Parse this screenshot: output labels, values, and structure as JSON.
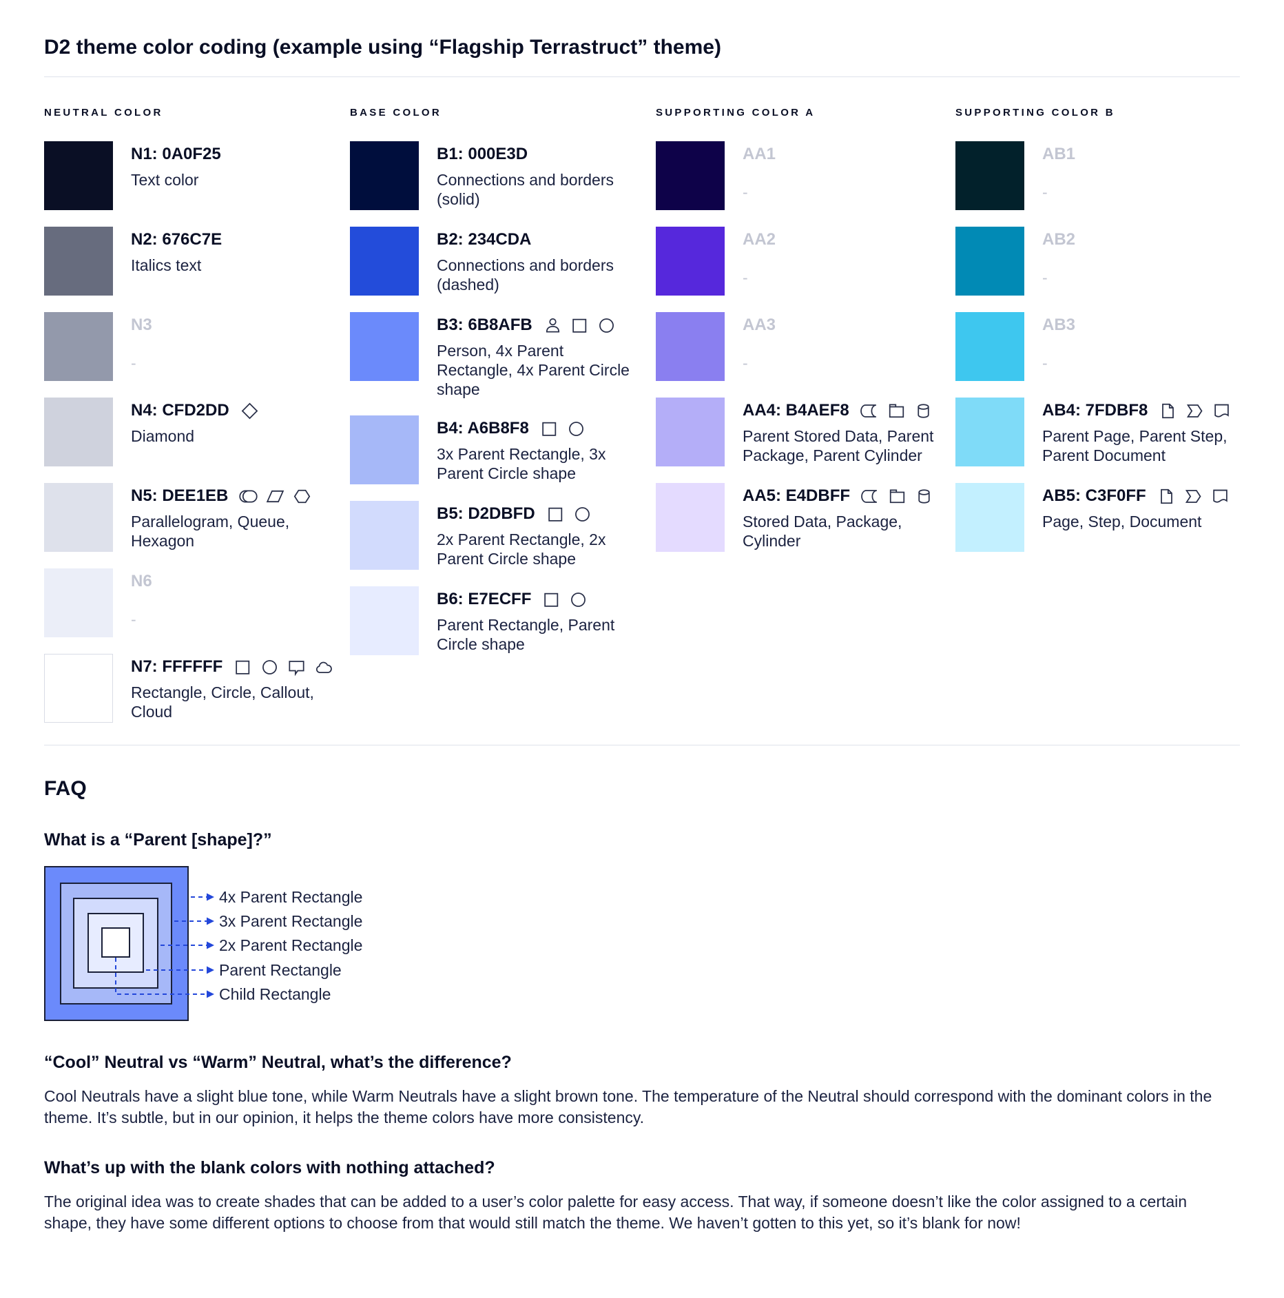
{
  "page": {
    "title": "D2 theme color coding (example using “Flagship Terrastruct” theme)"
  },
  "palette": {
    "columns": [
      {
        "header": "NEUTRAL COLOR",
        "rows": [
          {
            "code": "N1: 0A0F25",
            "color": "#0A0F25",
            "desc": "Text color",
            "icons": []
          },
          {
            "code": "N2: 676C7E",
            "color": "#676C7E",
            "desc": "Italics text",
            "icons": []
          },
          {
            "code": "N3",
            "color": "#9399AB",
            "desc": "-",
            "blank": true,
            "icons": []
          },
          {
            "code": "N4: CFD2DD",
            "color": "#CFD2DD",
            "desc": "Diamond",
            "icons": [
              "diamond"
            ]
          },
          {
            "code": "N5: DEE1EB",
            "color": "#DEE1EB",
            "desc": "Parallelogram, Queue, Hexagon",
            "icons": [
              "queue",
              "parallelogram",
              "hexagon"
            ]
          },
          {
            "code": "N6",
            "color": "#EBEEF8",
            "desc": "-",
            "blank": true,
            "icons": []
          },
          {
            "code": "N7: FFFFFF",
            "color": "#FFFFFF",
            "desc": "Rectangle, Circle, Callout, Cloud",
            "icons": [
              "rectangle",
              "circle",
              "callout",
              "cloud"
            ],
            "bordered": true
          }
        ]
      },
      {
        "header": "BASE COLOR",
        "rows": [
          {
            "code": "B1: 000E3D",
            "color": "#000E3D",
            "desc": "Connections and borders (solid)",
            "icons": []
          },
          {
            "code": "B2: 234CDA",
            "color": "#234CDA",
            "desc": "Connections and borders (dashed)",
            "icons": []
          },
          {
            "code": "B3: 6B8AFB",
            "color": "#6B8AFB",
            "desc": "Person, 4x Parent Rectangle, 4x Parent Circle shape",
            "icons": [
              "person",
              "rectangle",
              "circle"
            ]
          },
          {
            "code": "B4: A6B8F8",
            "color": "#A6B8F8",
            "desc": "3x Parent Rectangle, 3x Parent Circle shape",
            "icons": [
              "rectangle",
              "circle"
            ]
          },
          {
            "code": "B5: D2DBFD",
            "color": "#D2DBFD",
            "desc": "2x Parent Rectangle, 2x Parent Circle shape",
            "icons": [
              "rectangle",
              "circle"
            ]
          },
          {
            "code": "B6: E7ECFF",
            "color": "#E7ECFF",
            "desc": "Parent Rectangle, Parent Circle shape",
            "icons": [
              "rectangle",
              "circle"
            ]
          }
        ]
      },
      {
        "header": "SUPPORTING COLOR A",
        "rows": [
          {
            "code": "AA1",
            "color": "#0E0249",
            "desc": "-",
            "blank": true,
            "icons": []
          },
          {
            "code": "AA2",
            "color": "#5628DC",
            "desc": "-",
            "blank": true,
            "icons": []
          },
          {
            "code": "AA3",
            "color": "#8A7FF0",
            "desc": "-",
            "blank": true,
            "icons": []
          },
          {
            "code": "AA4: B4AEF8",
            "color": "#B4AEF8",
            "desc": "Parent Stored Data, Parent Package,  Parent Cylinder",
            "icons": [
              "stored-data",
              "package",
              "cylinder"
            ]
          },
          {
            "code": "AA5: E4DBFF",
            "color": "#E4DBFF",
            "desc": "Stored Data, Package, Cylinder",
            "icons": [
              "stored-data",
              "package",
              "cylinder"
            ]
          }
        ]
      },
      {
        "header": "SUPPORTING COLOR B",
        "rows": [
          {
            "code": "AB1",
            "color": "#02212B",
            "desc": "-",
            "blank": true,
            "icons": []
          },
          {
            "code": "AB2",
            "color": "#018AB5",
            "desc": "-",
            "blank": true,
            "icons": []
          },
          {
            "code": "AB3",
            "color": "#3EC7EF",
            "desc": "-",
            "blank": true,
            "icons": []
          },
          {
            "code": "AB4: 7FDBF8",
            "color": "#7FDBF8",
            "desc": "Parent Page, Parent Step, Parent Document",
            "icons": [
              "page",
              "step",
              "document"
            ]
          },
          {
            "code": "AB5: C3F0FF",
            "color": "#C3F0FF",
            "desc": "Page, Step, Document",
            "icons": [
              "page",
              "step",
              "document"
            ]
          }
        ]
      }
    ]
  },
  "faq": {
    "heading": "FAQ",
    "q1": "What is a “Parent [shape]?”",
    "diagram": {
      "labels": [
        "4x Parent Rectangle",
        "3x Parent Rectangle",
        "2x Parent Rectangle",
        "Parent Rectangle",
        "Child Rectangle"
      ],
      "fills": [
        "#6B8AFB",
        "#A6B8F8",
        "#D2DBFD",
        "#E7ECFF",
        "#FFFFFF"
      ],
      "line_color": "#2347DA",
      "border_color": "#1A2038"
    },
    "q2": "“Cool” Neutral vs “Warm” Neutral, what’s the difference?",
    "a2": "Cool Neutrals have a slight blue tone, while Warm Neutrals have a slight brown tone. The temperature of the Neutral should correspond with the dominant colors in the theme. It’s subtle, but in our opinion, it helps the theme colors have more consistency.",
    "q3": "What’s up with the blank colors with nothing attached?",
    "a3": "The original idea was to create shades that can be added to a user’s color palette for easy access. That way, if someone doesn’t like the color assigned to a certain shape, they have some different options to choose from that would still match the theme. We haven’t gotten to this yet, so it’s blank for now!"
  }
}
